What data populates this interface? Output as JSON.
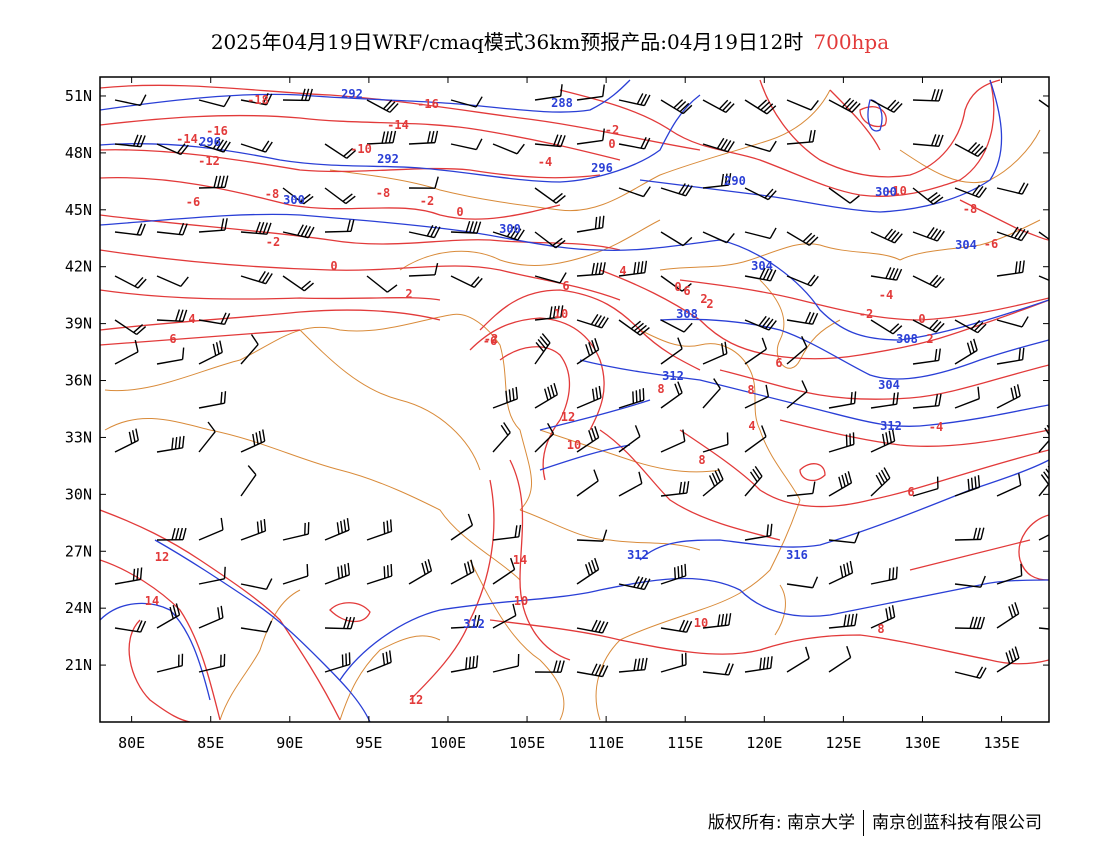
{
  "title": {
    "main": "2025年04月19日WRF/cmaq模式36km预报产品:04月19日12时",
    "level": "700hpa",
    "level_color": "#e23a3a"
  },
  "colors": {
    "temperature": "#e23a3a",
    "height": "#2a3fd6",
    "border": "#d98b3a",
    "wind": "#000000"
  },
  "map": {
    "lon_range": [
      78,
      138
    ],
    "lat_range": [
      18,
      52
    ],
    "lat_labels": [
      "51N",
      "48N",
      "45N",
      "42N",
      "39N",
      "36N",
      "33N",
      "30N",
      "27N",
      "24N",
      "21N"
    ],
    "lon_labels": [
      "80E",
      "85E",
      "90E",
      "95E",
      "100E",
      "105E",
      "110E",
      "115E",
      "120E",
      "125E",
      "130E",
      "135E"
    ]
  },
  "height_labels": [
    "292",
    "288",
    "296",
    "292",
    "296",
    "290",
    "300",
    "300",
    "304",
    "300",
    "304",
    "308",
    "308",
    "304",
    "312",
    "312",
    "312",
    "316",
    "312"
  ],
  "temp_labels": [
    "-18",
    "-16",
    "-16",
    "-14",
    "-14",
    "-12",
    "-10",
    "-8",
    "-4",
    "-2",
    "0",
    "-6",
    "-8",
    "-10",
    "-2",
    "0",
    "-2",
    "0",
    "2",
    "4",
    "6",
    "6",
    "-4",
    "-8",
    "-6",
    "2",
    "-2",
    "0",
    "2",
    "4",
    "6",
    "-6",
    "8",
    "10",
    "12",
    "10",
    "8",
    "6",
    "4",
    "2",
    "0",
    "-4",
    "-2",
    "8",
    "6",
    "12",
    "14",
    "10",
    "14",
    "12",
    "10",
    "8"
  ],
  "footer": {
    "copyright": "版权所有: 南京大学",
    "company": "南京创蓝科技有限公司"
  }
}
